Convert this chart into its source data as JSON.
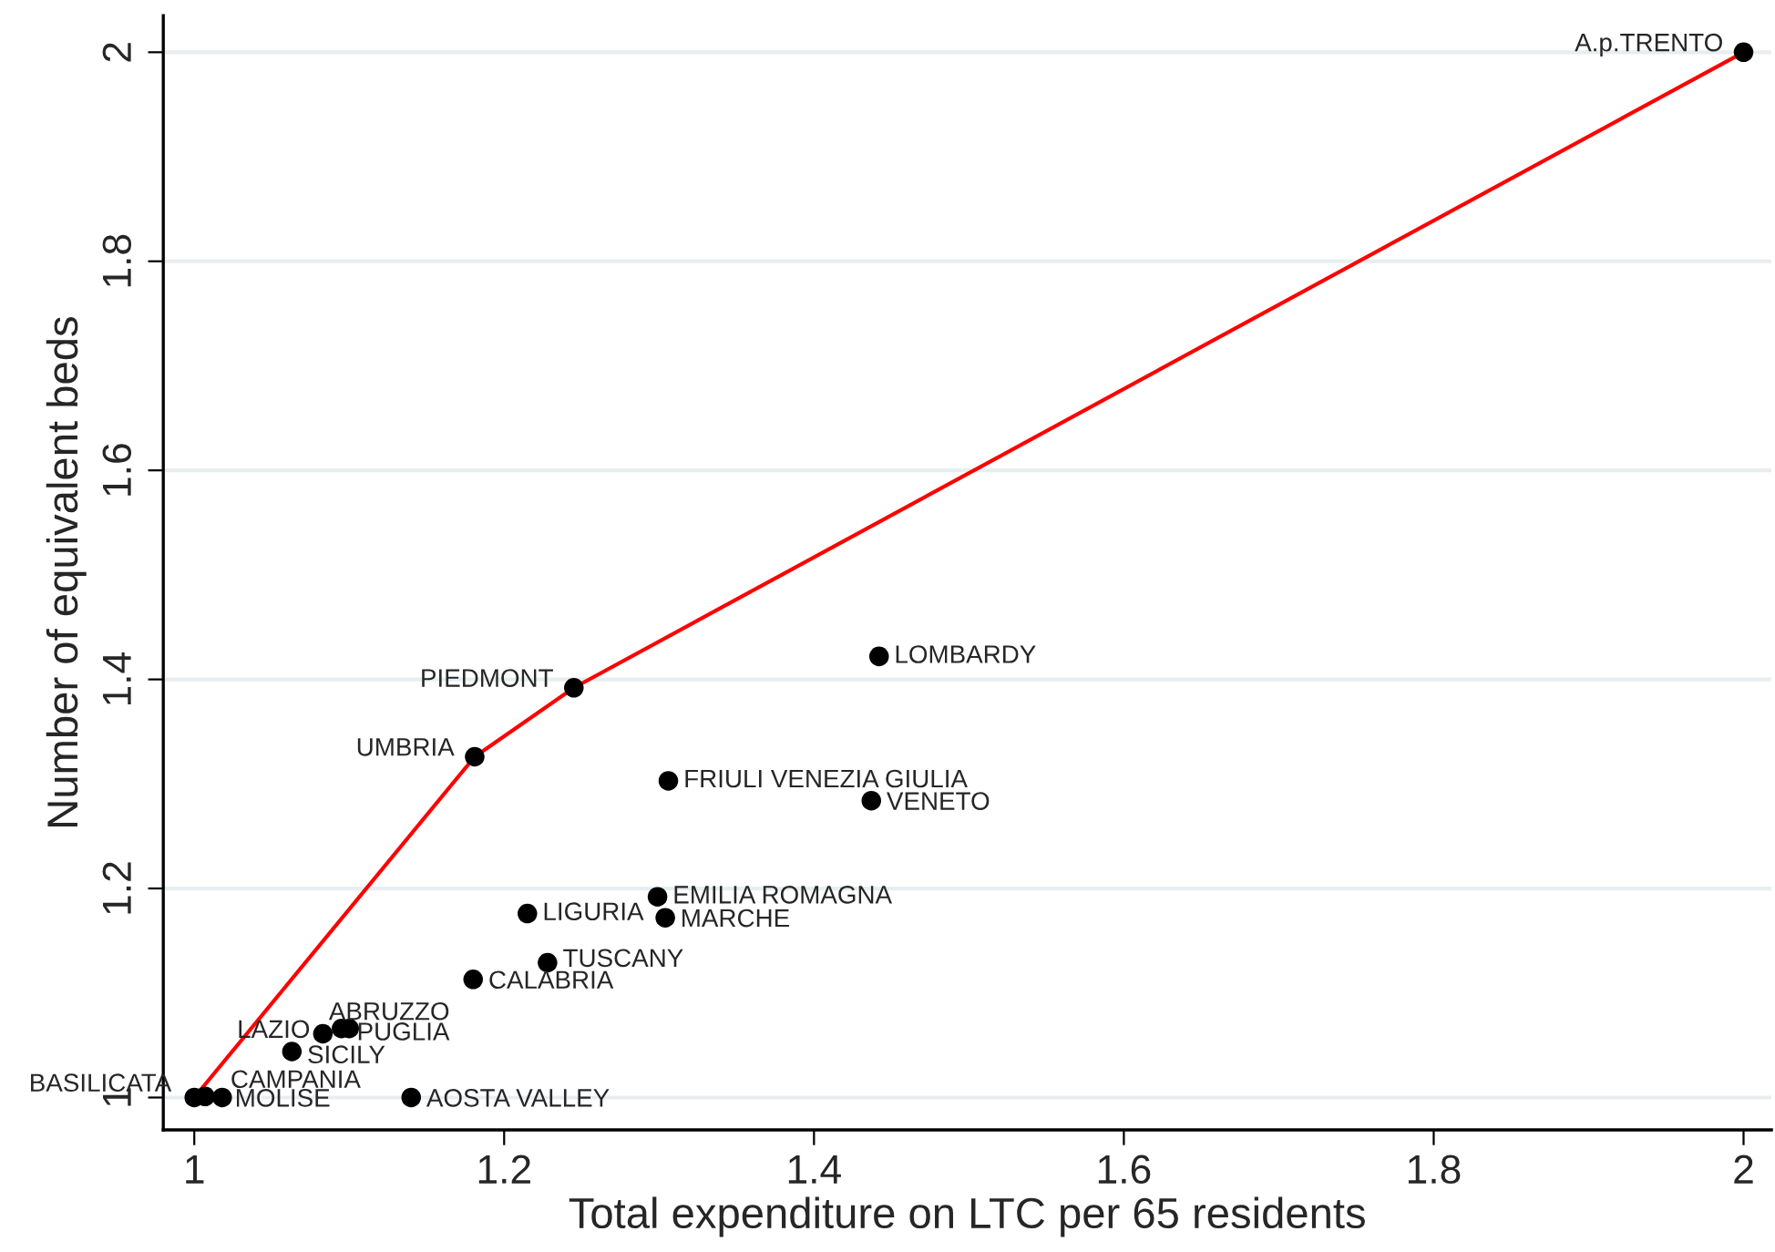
{
  "chart_data": {
    "type": "scatter",
    "xlabel": "Total expenditure on LTC per 65 residents",
    "ylabel": "Number of equivalent beds",
    "xlim": [
      0.98,
      2.018
    ],
    "ylim": [
      0.969,
      2.035
    ],
    "xticks": [
      1,
      {
        "value": 1.2,
        "label": "1.2"
      },
      {
        "value": 1.4,
        "label": "1.4"
      },
      {
        "value": 1.6,
        "label": "1.6"
      },
      {
        "value": 1.8,
        "label": "1.8"
      },
      2
    ],
    "yticks": [
      1,
      {
        "value": 1.2,
        "label": "1.2"
      },
      {
        "value": 1.4,
        "label": "1.4"
      },
      {
        "value": 1.6,
        "label": "1.6"
      },
      {
        "value": 1.8,
        "label": "1.8"
      },
      2
    ],
    "grid": "y",
    "series": [
      {
        "marker": "circle",
        "color": "#000000",
        "x": [
          2,
          1.442,
          1.245,
          1.181,
          1.306,
          1.437,
          1.299,
          1.304,
          1.215,
          1.228,
          1.18,
          1.083,
          1.095,
          1.1,
          1.063,
          1,
          1.007,
          1.018,
          1.14
        ],
        "values": [
          2,
          1.422,
          1.392,
          1.326,
          1.303,
          1.284,
          1.192,
          1.172,
          1.176,
          1.129,
          1.113,
          1.061,
          1.066,
          1.066,
          1.044,
          1,
          1.001,
          1,
          1
        ]
      },
      {
        "type": "line",
        "marker": "none",
        "color": "#ff0000",
        "x": [
          1,
          1.181,
          1.245,
          2
        ],
        "values": [
          1,
          1.326,
          1.392,
          2
        ]
      }
    ],
    "annotations": [
      {
        "text": "A.p.TRENTO",
        "x": 2,
        "y": 2
      },
      {
        "text": "LOMBARDY",
        "x": 1.442,
        "y": 1.422
      },
      {
        "text": "PIEDMONT",
        "x": 1.245,
        "y": 1.392
      },
      {
        "text": "UMBRIA",
        "x": 1.181,
        "y": 1.326
      },
      {
        "text": "FRIULI VENEZIA GIULIA",
        "x": 1.306,
        "y": 1.303
      },
      {
        "text": "VENETO",
        "x": 1.437,
        "y": 1.284
      },
      {
        "text": "EMILIA ROMAGNA",
        "x": 1.299,
        "y": 1.192
      },
      {
        "text": "MARCHE",
        "x": 1.304,
        "y": 1.172
      },
      {
        "text": "LIGURIA",
        "x": 1.215,
        "y": 1.176
      },
      {
        "text": "TUSCANY",
        "x": 1.228,
        "y": 1.129
      },
      {
        "text": "CALABRIA",
        "x": 1.18,
        "y": 1.113
      },
      {
        "text": "LAZIO",
        "x": 1.083,
        "y": 1.061
      },
      {
        "text": "ABRUZZO",
        "x": 1.095,
        "y": 1.066
      },
      {
        "text": "PUGLIA",
        "x": 1.1,
        "y": 1.066
      },
      {
        "text": "SICILY",
        "x": 1.063,
        "y": 1.044
      },
      {
        "text": "BASILICATA",
        "x": 1,
        "y": 1
      },
      {
        "text": "CAMPANIA",
        "x": 1.007,
        "y": 1.001
      },
      {
        "text": "MOLISE",
        "x": 1.018,
        "y": 1
      },
      {
        "text": "AOSTA VALLEY",
        "x": 1.14,
        "y": 1
      }
    ]
  }
}
